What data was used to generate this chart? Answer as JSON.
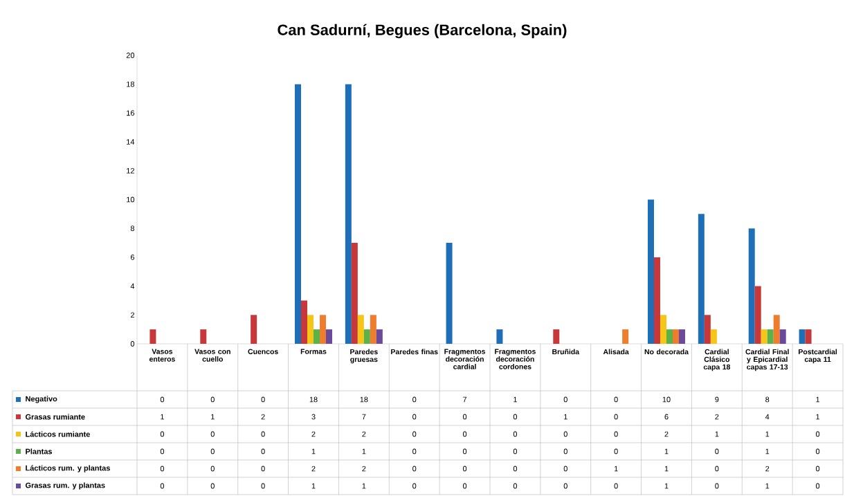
{
  "chart_data": {
    "type": "bar",
    "title": "Can Sadurní, Begues (Barcelona, Spain)",
    "categories": [
      "Vasos enteros",
      "Vasos con cuello",
      "Cuencos",
      "Formas",
      "Paredes gruesas",
      "Paredes finas",
      "Fragmentos decoración cardial",
      "Fragmentos decoración cordones",
      "Bruñida",
      "Alisada",
      "No decorada",
      "Cardial Clásico capa 18",
      "Cardial Final y Epicardial capas 17-13",
      "Postcardial capa 11"
    ],
    "series": [
      {
        "name": "Negativo",
        "color": "#1f6fb8",
        "values": [
          0,
          0,
          0,
          18,
          18,
          0,
          7,
          1,
          0,
          0,
          10,
          9,
          8,
          1
        ]
      },
      {
        "name": "Grasas rumiante",
        "color": "#c8383a",
        "values": [
          1,
          1,
          2,
          3,
          7,
          0,
          0,
          0,
          1,
          0,
          6,
          2,
          4,
          1
        ]
      },
      {
        "name": "Lácticos rumiante",
        "color": "#f5c518",
        "values": [
          0,
          0,
          0,
          2,
          2,
          0,
          0,
          0,
          0,
          0,
          2,
          1,
          1,
          0
        ]
      },
      {
        "name": "Plantas",
        "color": "#5bb14a",
        "values": [
          0,
          0,
          0,
          1,
          1,
          0,
          0,
          0,
          0,
          0,
          1,
          0,
          1,
          0
        ]
      },
      {
        "name": "Lácticos rum. y plantas",
        "color": "#ef7d2e",
        "values": [
          0,
          0,
          0,
          2,
          2,
          0,
          0,
          0,
          0,
          1,
          1,
          0,
          2,
          0
        ]
      },
      {
        "name": "Grasas rum. y plantas",
        "color": "#6a4a9c",
        "values": [
          0,
          0,
          0,
          1,
          1,
          0,
          0,
          0,
          0,
          0,
          1,
          0,
          1,
          0
        ]
      }
    ],
    "ylim": [
      0,
      20
    ],
    "yticks": [
      0,
      2,
      4,
      6,
      8,
      10,
      12,
      14,
      16,
      18,
      20
    ],
    "data_labels": true,
    "legend": "bottom"
  }
}
